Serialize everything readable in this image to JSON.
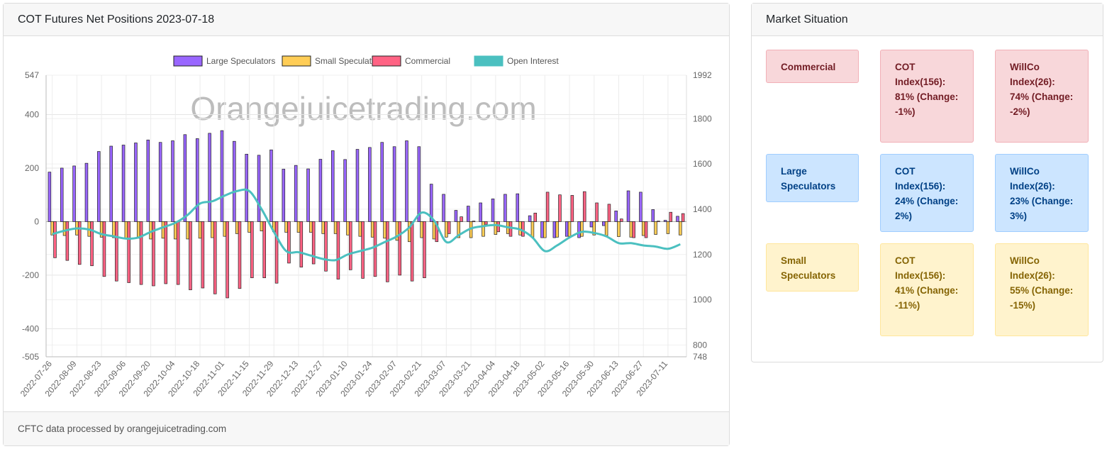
{
  "chart_card": {
    "title": "COT Futures Net Positions 2023-07-18",
    "footer": "CFTC data processed by orangejuicetrading.com",
    "watermark": "Orangejuicetrading.com"
  },
  "situation": {
    "title": "Market Situation",
    "rows": [
      {
        "label": "Commercial",
        "cot_index": "COT Index(156): 81% (Change: -1%)",
        "willco": "WillCo Index(26): 74% (Change: -2%)",
        "color": "red"
      },
      {
        "label": "Large Speculators",
        "cot_index": "COT Index(156): 24% (Change: 2%)",
        "willco": "WillCo Index(26): 23% (Change: 3%)",
        "color": "blue"
      },
      {
        "label": "Small Speculators",
        "cot_index": "COT Index(156): 41% (Change: -11%)",
        "willco": "WillCo Index(26): 55% (Change: -15%)",
        "color": "yellow"
      }
    ]
  },
  "chart_data": {
    "type": "bar",
    "title": "COT Futures Net Positions 2023-07-18",
    "legend": [
      "Large Speculators",
      "Small Speculators",
      "Commercial",
      "Open Interest"
    ],
    "legend_position": "top",
    "colors": {
      "large": "#9966ff",
      "small": "#ffcd56",
      "commercial": "#ff6384",
      "oi": "#4bc0c0"
    },
    "y_left": {
      "range": [
        -505,
        547
      ],
      "ticks": [
        547,
        400,
        200,
        0,
        -200,
        -400,
        -505
      ]
    },
    "y_right": {
      "range": [
        748,
        1992
      ],
      "ticks": [
        1992,
        1800,
        1600,
        1400,
        1200,
        1000,
        800,
        748
      ]
    },
    "x_labels": [
      "2022-07-26",
      "2022-08-09",
      "2022-08-23",
      "2022-09-06",
      "2022-09-20",
      "2022-10-04",
      "2022-10-18",
      "2022-11-01",
      "2022-11-15",
      "2022-11-29",
      "2022-12-13",
      "2022-12-27",
      "2023-01-10",
      "2023-01-24",
      "2023-02-07",
      "2023-02-21",
      "2023-03-07",
      "2023-03-21",
      "2023-04-04",
      "2023-04-18",
      "2023-05-02",
      "2023-05-16",
      "2023-05-30",
      "2023-06-13",
      "2023-06-27",
      "2023-07-11"
    ],
    "series": [
      {
        "name": "Large Speculators",
        "values": [
          185,
          200,
          208,
          218,
          262,
          282,
          286,
          294,
          305,
          296,
          302,
          325,
          310,
          330,
          340,
          300,
          252,
          248,
          268,
          196,
          210,
          197,
          233,
          265,
          232,
          270,
          277,
          296,
          280,
          302,
          280,
          140,
          102,
          42,
          58,
          70,
          85,
          102,
          104,
          22,
          -60,
          -60,
          -55,
          -60,
          -20,
          -15,
          40,
          115,
          110,
          45,
          5,
          20
        ]
      },
      {
        "name": "Small Speculators",
        "values": [
          -50,
          -52,
          -50,
          -55,
          -58,
          -60,
          -62,
          -62,
          -65,
          -62,
          -65,
          -65,
          -62,
          -60,
          -55,
          -45,
          -40,
          -35,
          -38,
          -40,
          -40,
          -40,
          -45,
          -45,
          -50,
          -55,
          -58,
          -62,
          -70,
          -75,
          -60,
          -65,
          -58,
          -60,
          -60,
          -55,
          -48,
          -45,
          -50,
          -58,
          -60,
          -58,
          -55,
          -55,
          -50,
          -52,
          -56,
          -58,
          -52,
          -48,
          -45,
          -50
        ]
      },
      {
        "name": "Commercial",
        "values": [
          -135,
          -145,
          -160,
          -165,
          -205,
          -222,
          -228,
          -235,
          -240,
          -232,
          -235,
          -255,
          -248,
          -270,
          -285,
          -250,
          -210,
          -210,
          -230,
          -155,
          -170,
          -158,
          -185,
          -215,
          -180,
          -212,
          -205,
          -225,
          -200,
          -222,
          -210,
          -75,
          -45,
          18,
          2,
          -10,
          -38,
          -55,
          -55,
          32,
          110,
          100,
          98,
          112,
          70,
          65,
          10,
          -60,
          -60,
          2,
          35,
          30
        ]
      },
      {
        "name": "Open Interest",
        "values": [
          1290,
          1305,
          1315,
          1310,
          1290,
          1280,
          1270,
          1275,
          1300,
          1320,
          1340,
          1375,
          1425,
          1435,
          1460,
          1480,
          1480,
          1400,
          1300,
          1215,
          1210,
          1195,
          1180,
          1175,
          1200,
          1215,
          1230,
          1255,
          1280,
          1320,
          1385,
          1350,
          1255,
          1285,
          1315,
          1325,
          1330,
          1320,
          1310,
          1275,
          1215,
          1240,
          1275,
          1300,
          1295,
          1280,
          1250,
          1250,
          1240,
          1235,
          1225,
          1245
        ]
      }
    ]
  }
}
